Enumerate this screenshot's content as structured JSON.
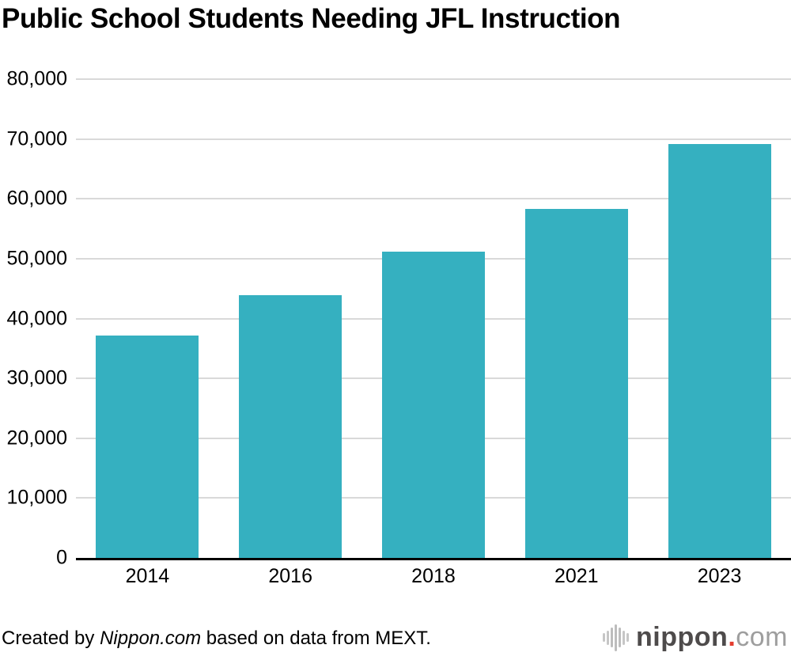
{
  "title": "Public School Students Needing JFL Instruction",
  "footer": {
    "prefix": "Created by ",
    "source": "Nippon.com",
    "suffix": " based on data from MEXT."
  },
  "logo": {
    "icon": "soundwave-icon",
    "main": "nippon",
    "dot": ".",
    "tld": "com"
  },
  "colors": {
    "bar": "#35b0c0",
    "gridline": "#d9d9d9",
    "axis": "#000000",
    "background": "#ffffff",
    "text": "#000000",
    "logo_main": "#4e4b4b",
    "logo_dot": "#e43d30",
    "logo_tld": "#9e9e9e"
  },
  "chart_data": {
    "type": "bar",
    "title": "Public School Students Needing JFL Instruction",
    "categories": [
      "2014",
      "2016",
      "2018",
      "2021",
      "2023"
    ],
    "values": [
      37095,
      43947,
      51126,
      58307,
      69123
    ],
    "xlabel": "",
    "ylabel": "",
    "ylim": [
      0,
      80000
    ],
    "ytick_step": 10000,
    "ytick_labels": [
      "0",
      "10,000",
      "20,000",
      "30,000",
      "40,000",
      "50,000",
      "60,000",
      "70,000",
      "80,000"
    ],
    "grid": true,
    "legend": false,
    "bar_color": "#35b0c0"
  }
}
